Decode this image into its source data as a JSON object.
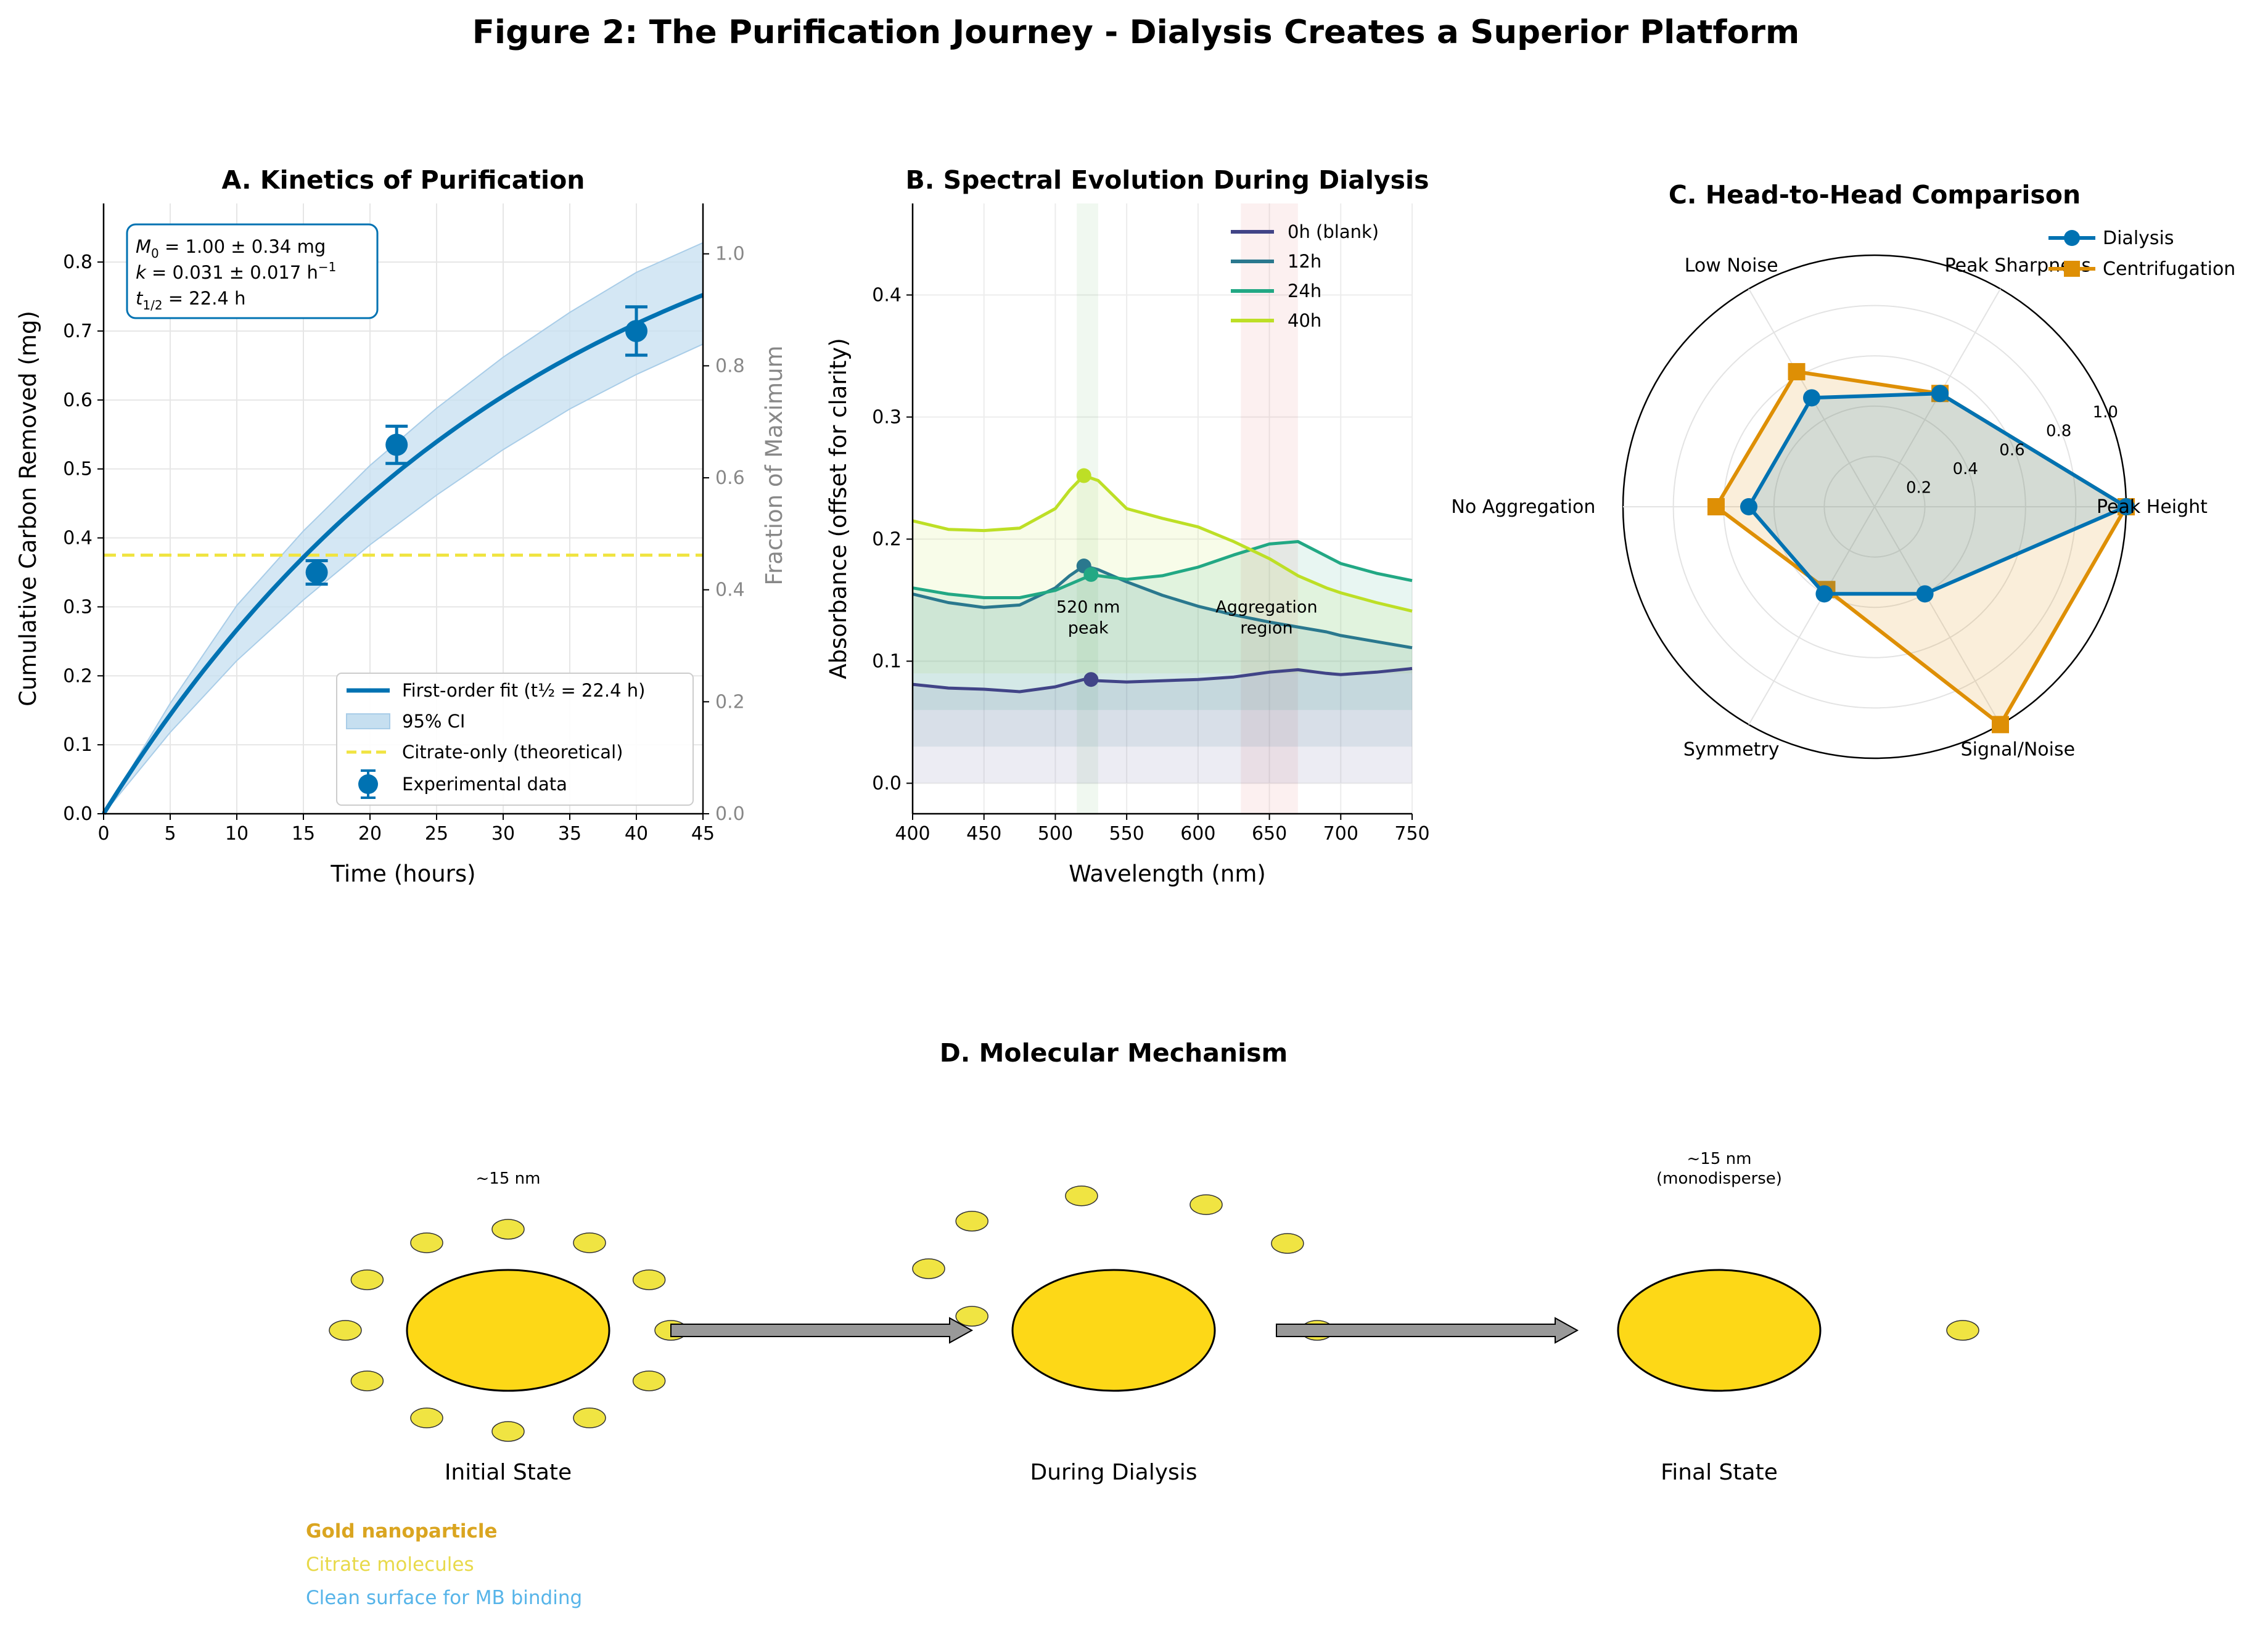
{
  "figure_title": "Figure 2: The Purification Journey - Dialysis Creates a Superior Platform",
  "colors": {
    "blue": "#0072b2",
    "ci_fill": "#c6dff0",
    "orange": "#de8f05",
    "citrate": "#f0e442",
    "gold": "#fdd817",
    "gold_text": "#daa520",
    "clean_text": "#56b4e9",
    "arrow_fill": "#999999"
  },
  "chart_data": [
    {
      "id": "A",
      "type": "line",
      "title": "A. Kinetics of Purification",
      "xlabel": "Time (hours)",
      "ylabel": "Cumulative Carbon Removed (mg)",
      "y2label": "Fraction of Maximum",
      "xlim": [
        0,
        45
      ],
      "ylim": [
        0,
        0.885
      ],
      "y2lim": [
        0,
        1.09
      ],
      "xticks": [
        0,
        5,
        10,
        15,
        20,
        25,
        30,
        35,
        40,
        45
      ],
      "yticks": [
        0.0,
        0.1,
        0.2,
        0.3,
        0.4,
        0.5,
        0.6,
        0.7,
        0.8
      ],
      "y2ticks": [
        0.0,
        0.2,
        0.4,
        0.6,
        0.8,
        1.0
      ],
      "grid": true,
      "legend_position": "lower-right",
      "annotation": {
        "m0_label": "M",
        "m0_sub": "0",
        "m0_val": " = 1.00 ± 0.34 mg",
        "k_label": "k",
        "k_val": " = 0.031 ± 0.017 h",
        "k_sup": "−1",
        "t_label": "t",
        "t_sub": "1/2",
        "t_val": " = 22.4 h"
      },
      "fit": {
        "name": "First-order fit (t½ = 22.4 h)",
        "model": "M0*(1-exp(-k*t))",
        "M0": 1.0,
        "k": 0.031
      },
      "ci": {
        "name": "95% CI",
        "x": [
          0,
          5,
          10,
          15,
          20,
          25,
          30,
          35,
          40,
          45
        ],
        "lower": [
          0,
          0.118,
          0.222,
          0.31,
          0.39,
          0.462,
          0.528,
          0.587,
          0.637,
          0.681
        ],
        "upper": [
          0,
          0.16,
          0.302,
          0.41,
          0.505,
          0.588,
          0.662,
          0.727,
          0.785,
          0.828
        ]
      },
      "citrate_line": {
        "name": "Citrate-only (theoretical)",
        "y": 0.375
      },
      "points": {
        "name": "Experimental data",
        "x": [
          16,
          22,
          40
        ],
        "y": [
          0.35,
          0.535,
          0.7
        ],
        "err": [
          0.017,
          0.027,
          0.035
        ]
      }
    },
    {
      "id": "B",
      "type": "line",
      "title": "B. Spectral Evolution During Dialysis",
      "xlabel": "Wavelength (nm)",
      "ylabel": "Absorbance (offset for clarity)",
      "xlim": [
        400,
        750
      ],
      "ylim": [
        -0.025,
        0.475
      ],
      "xticks": [
        400,
        450,
        500,
        550,
        600,
        650,
        700,
        750
      ],
      "yticks": [
        0.0,
        0.1,
        0.2,
        0.3,
        0.4
      ],
      "grid": true,
      "legend_position": "top-right",
      "bands": [
        {
          "from": 515,
          "to": 530,
          "color": "#2ca02c"
        },
        {
          "from": 630,
          "to": 670,
          "color": "#d62728"
        }
      ],
      "peak_label": [
        "520 nm",
        "peak"
      ],
      "peak_label_pos": {
        "x": 523,
        "y": 0.14
      },
      "agg_label": [
        "Aggregation",
        "region"
      ],
      "agg_label_pos": {
        "x": 648,
        "y": 0.14
      },
      "x": [
        400,
        425,
        450,
        475,
        500,
        510,
        520,
        530,
        550,
        575,
        600,
        625,
        650,
        670,
        690,
        700,
        725,
        750
      ],
      "series": [
        {
          "name": "0h (blank)",
          "color": "#414487",
          "offset": 0.0,
          "values": [
            0.081,
            0.078,
            0.077,
            0.075,
            0.079,
            0.082,
            0.085,
            0.084,
            0.083,
            0.084,
            0.085,
            0.087,
            0.091,
            0.093,
            0.09,
            0.089,
            0.091,
            0.094
          ],
          "marker": {
            "x": 525,
            "y": 0.085
          }
        },
        {
          "name": "12h",
          "color": "#2a788e",
          "offset": 0.03,
          "values": [
            0.155,
            0.148,
            0.144,
            0.146,
            0.16,
            0.17,
            0.178,
            0.175,
            0.165,
            0.154,
            0.145,
            0.138,
            0.132,
            0.128,
            0.124,
            0.121,
            0.116,
            0.111
          ],
          "marker": {
            "x": 520,
            "y": 0.178
          }
        },
        {
          "name": "24h",
          "color": "#22a884",
          "offset": 0.06,
          "values": [
            0.16,
            0.155,
            0.152,
            0.152,
            0.158,
            0.163,
            0.168,
            0.17,
            0.167,
            0.17,
            0.177,
            0.187,
            0.196,
            0.198,
            0.186,
            0.18,
            0.172,
            0.166
          ],
          "marker": {
            "x": 525,
            "y": 0.171
          }
        },
        {
          "name": "40h",
          "color": "#bddf26",
          "offset": 0.09,
          "values": [
            0.215,
            0.208,
            0.207,
            0.209,
            0.225,
            0.24,
            0.252,
            0.248,
            0.225,
            0.217,
            0.21,
            0.198,
            0.184,
            0.17,
            0.16,
            0.156,
            0.148,
            0.141
          ],
          "marker": {
            "x": 520,
            "y": 0.252
          }
        }
      ]
    },
    {
      "id": "C",
      "type": "radar",
      "title": "C. Head-to-Head Comparison",
      "axes": [
        "Peak Height",
        "Peak Sharpness",
        "Low Noise",
        "No Aggregation",
        "Symmetry",
        "Signal/Noise"
      ],
      "rlim": [
        0,
        1.0
      ],
      "rticks": [
        "0.2",
        "0.4",
        "0.6",
        "0.8",
        "1.0"
      ],
      "rtick_values": [
        0.2,
        0.4,
        0.6,
        0.8,
        1.0
      ],
      "legend_position": "top-right",
      "series": [
        {
          "name": "Dialysis",
          "color": "#0072b2",
          "marker": "circle",
          "values": [
            1.0,
            0.52,
            0.5,
            0.5,
            0.4,
            0.4
          ]
        },
        {
          "name": "Centrifugation",
          "color": "#de8f05",
          "marker": "square",
          "values": [
            1.0,
            0.52,
            0.62,
            0.63,
            0.38,
            1.0
          ]
        }
      ]
    },
    {
      "id": "D",
      "type": "diagram",
      "title": "D. Molecular Mechanism",
      "stages": [
        {
          "label": "Initial State",
          "size_label": [
            "~15 nm"
          ],
          "citrate_count": 12,
          "citrate_visible": [
            0,
            1,
            2,
            3,
            4,
            5,
            6,
            7,
            8,
            9,
            10,
            11
          ]
        },
        {
          "label": "During Dialysis",
          "size_label": [],
          "citrate_count": 12,
          "citrate_visible": [
            0,
            1,
            2,
            3,
            4,
            5,
            6
          ]
        },
        {
          "label": "Final State",
          "size_label": [
            "~15 nm",
            "(monodisperse)"
          ],
          "citrate_count": 12,
          "citrate_visible": [
            0
          ]
        }
      ],
      "legend": [
        {
          "text": "Gold nanoparticle",
          "color": "#daa520",
          "bold": true
        },
        {
          "text": "Citrate molecules",
          "color": "#e8d94a",
          "bold": false
        },
        {
          "text": "Clean surface for MB binding",
          "color": "#56b4e9",
          "bold": false
        }
      ]
    }
  ]
}
